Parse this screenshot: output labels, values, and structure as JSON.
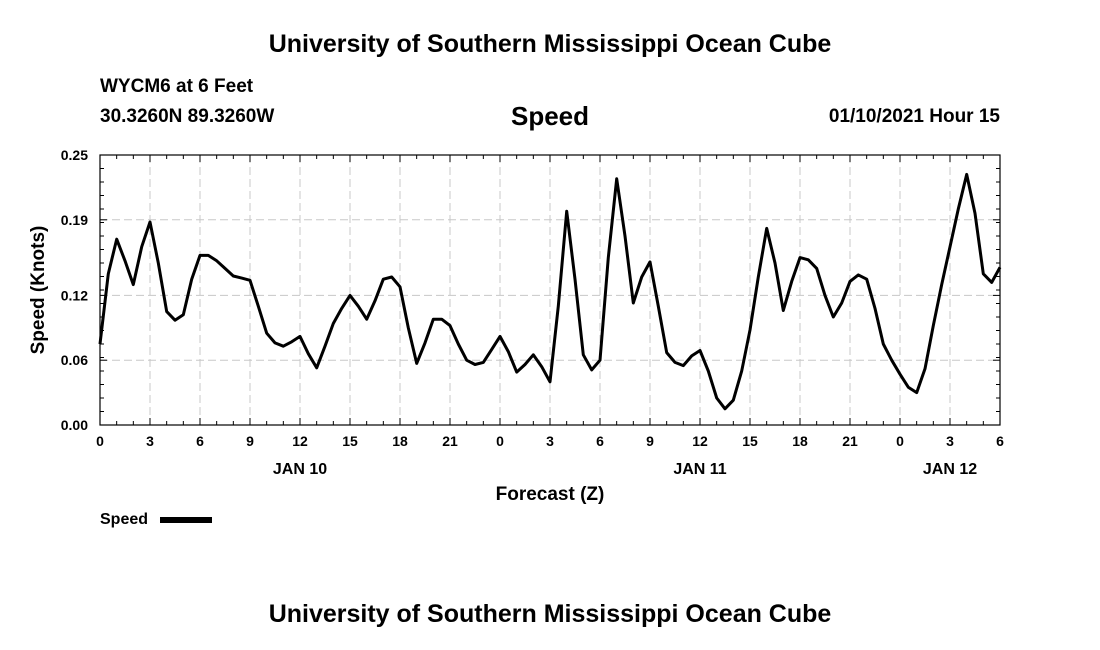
{
  "header": {
    "title": "University of Southern Mississippi Ocean Cube",
    "station": "WYCM6 at 6 Feet",
    "coords": "30.3260N 89.3260W",
    "datetime": "01/10/2021 Hour 15"
  },
  "footer": {
    "title": "University of Southern Mississippi Ocean Cube"
  },
  "colors": {
    "line": "#000000",
    "grid": "#c8c8c8"
  },
  "chart_data": {
    "type": "line",
    "title": "Speed",
    "xlabel": "Forecast (Z)",
    "ylabel": "Speed (Knots)",
    "ylim": [
      0.0,
      0.25
    ],
    "xlim": [
      0,
      54
    ],
    "yticks": [
      0.0,
      0.06,
      0.12,
      0.19,
      0.25
    ],
    "ytick_labels": [
      "0.00",
      "0.06",
      "0.12",
      "0.19",
      "0.25"
    ],
    "xticks": [
      0,
      3,
      6,
      9,
      12,
      15,
      18,
      21,
      24,
      27,
      30,
      33,
      36,
      39,
      42,
      45,
      48,
      51,
      54
    ],
    "xtick_labels": [
      "0",
      "3",
      "6",
      "9",
      "12",
      "15",
      "18",
      "21",
      "0",
      "3",
      "6",
      "9",
      "12",
      "15",
      "18",
      "21",
      "0",
      "3",
      "6"
    ],
    "date_labels": [
      {
        "label": "JAN 10",
        "at": 12
      },
      {
        "label": "JAN 11",
        "at": 36
      },
      {
        "label": "JAN 12",
        "at": 51
      }
    ],
    "grid": true,
    "legend": {
      "entries": [
        "Speed"
      ],
      "placement": "bottom-left"
    },
    "series": [
      {
        "name": "Speed",
        "x": [
          0,
          0.5,
          1,
          1.5,
          2,
          2.5,
          3,
          3.5,
          4,
          4.5,
          5,
          5.5,
          6,
          6.5,
          7,
          7.5,
          8,
          8.5,
          9,
          9.5,
          10,
          10.5,
          11,
          11.5,
          12,
          12.5,
          13,
          13.5,
          14,
          14.5,
          15,
          15.5,
          16,
          16.5,
          17,
          17.5,
          18,
          18.5,
          19,
          19.5,
          20,
          20.5,
          21,
          21.5,
          22,
          22.5,
          23,
          23.5,
          24,
          24.5,
          25,
          25.5,
          26,
          26.5,
          27,
          27.5,
          28,
          28.5,
          29,
          29.5,
          30,
          30.5,
          31,
          31.5,
          32,
          32.5,
          33,
          33.5,
          34,
          34.5,
          35,
          35.5,
          36,
          36.5,
          37,
          37.5,
          38,
          38.5,
          39,
          39.5,
          40,
          40.5,
          41,
          41.5,
          42,
          42.5,
          43,
          43.5,
          44,
          44.5,
          45,
          45.5,
          46,
          46.5,
          47,
          47.5,
          48,
          48.5,
          49,
          49.5,
          50,
          50.5,
          51,
          51.5,
          52,
          52.5,
          53,
          53.5,
          54
        ],
        "values": [
          0.075,
          0.14,
          0.172,
          0.152,
          0.13,
          0.165,
          0.188,
          0.15,
          0.105,
          0.097,
          0.102,
          0.135,
          0.157,
          0.157,
          0.152,
          0.145,
          0.138,
          0.136,
          0.134,
          0.11,
          0.085,
          0.076,
          0.073,
          0.077,
          0.082,
          0.066,
          0.053,
          0.073,
          0.094,
          0.108,
          0.12,
          0.11,
          0.098,
          0.115,
          0.135,
          0.137,
          0.128,
          0.09,
          0.057,
          0.076,
          0.098,
          0.098,
          0.092,
          0.075,
          0.06,
          0.056,
          0.058,
          0.07,
          0.082,
          0.068,
          0.049,
          0.056,
          0.065,
          0.054,
          0.04,
          0.11,
          0.198,
          0.135,
          0.065,
          0.051,
          0.06,
          0.155,
          0.228,
          0.175,
          0.113,
          0.137,
          0.151,
          0.11,
          0.067,
          0.058,
          0.055,
          0.064,
          0.069,
          0.05,
          0.025,
          0.015,
          0.023,
          0.05,
          0.088,
          0.137,
          0.182,
          0.15,
          0.106,
          0.133,
          0.155,
          0.153,
          0.145,
          0.12,
          0.1,
          0.113,
          0.133,
          0.139,
          0.135,
          0.108,
          0.075,
          0.06,
          0.047,
          0.035,
          0.03,
          0.052,
          0.092,
          0.13,
          0.165,
          0.2,
          0.232,
          0.196,
          0.14,
          0.132,
          0.146
        ]
      }
    ]
  }
}
